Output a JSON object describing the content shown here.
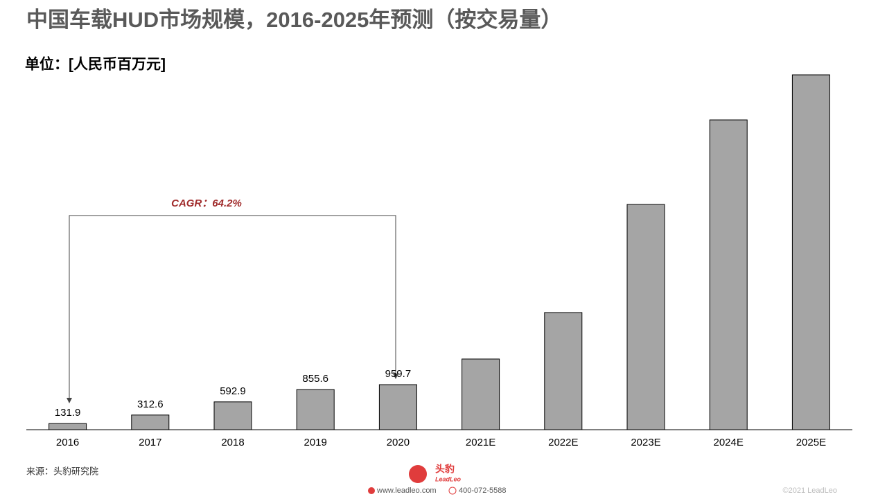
{
  "chart_data": {
    "type": "bar",
    "title": "中国车载HUD市场规模，2016-2025年预测（按交易量）",
    "subtitle": "单位：[人民币百万元]",
    "categories": [
      "2016",
      "2017",
      "2018",
      "2019",
      "2020",
      "2021E",
      "2022E",
      "2023E",
      "2024E",
      "2025E"
    ],
    "values": [
      131.9,
      312.6,
      592.9,
      855.6,
      959.7,
      1506,
      2496,
      4800,
      6600,
      7560
    ],
    "value_labels": [
      "131.9",
      "312.6",
      "592.9",
      "855.6",
      "959.7",
      null,
      null,
      null,
      null,
      null
    ],
    "color": "#a5a5a5",
    "annotation": "CAGR：64.2%",
    "source": "来源：头豹研究院",
    "logo": {
      "name": "头豹",
      "brand": "LeadLeo"
    },
    "footer": {
      "website": "www.leadleo.com",
      "phone": "400-072-5588",
      "copyright": "©2021 LeadLeo"
    }
  }
}
